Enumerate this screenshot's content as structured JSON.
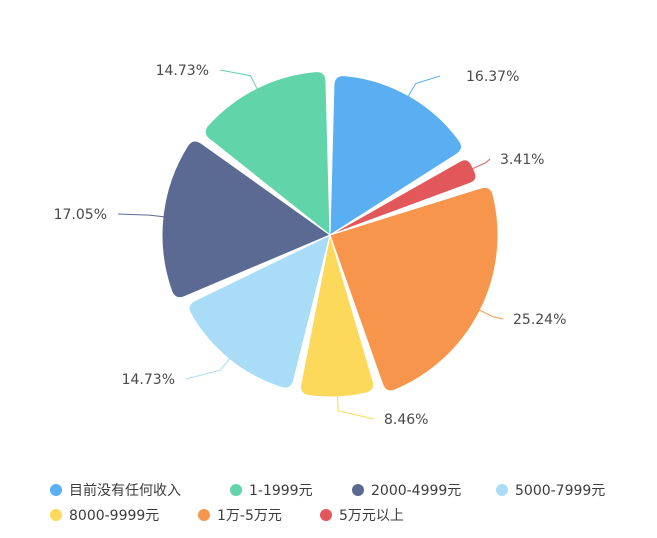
{
  "chart_data": {
    "type": "pie",
    "variant": "rose",
    "start_angle_deg": 90,
    "direction": "clockwise",
    "legend_position": "bottom",
    "slices": [
      {
        "label": "目前没有任何收入",
        "value": 16.37,
        "value_label": "16.37%",
        "color": "#5aaef2"
      },
      {
        "label": "5万元以上",
        "value": 3.41,
        "value_label": "3.41%",
        "color": "#e1575a"
      },
      {
        "label": "1万-5万元",
        "value": 25.24,
        "value_label": "25.24%",
        "color": "#f7954c"
      },
      {
        "label": "8000-9999元",
        "value": 8.46,
        "value_label": "8.46%",
        "color": "#fcd95a"
      },
      {
        "label": "5000-7999元",
        "value": 14.73,
        "value_label": "14.73%",
        "color": "#a9dcf6"
      },
      {
        "label": "2000-4999元",
        "value": 17.05,
        "value_label": "17.05%",
        "color": "#5a6a92"
      },
      {
        "label": "1-1999元",
        "value": 14.73,
        "value_label": "14.73%",
        "color": "#62d4aa"
      }
    ],
    "legend": [
      {
        "label": "目前没有任何收入",
        "color": "#5aaef2"
      },
      {
        "label": "1-1999元",
        "color": "#62d4aa"
      },
      {
        "label": "2000-4999元",
        "color": "#5a6a92"
      },
      {
        "label": "5000-7999元",
        "color": "#a9dcf6"
      },
      {
        "label": "8000-9999元",
        "color": "#fcd95a"
      },
      {
        "label": "1万-5万元",
        "color": "#f7954c"
      },
      {
        "label": "5万元以上",
        "color": "#e1575a"
      }
    ]
  }
}
